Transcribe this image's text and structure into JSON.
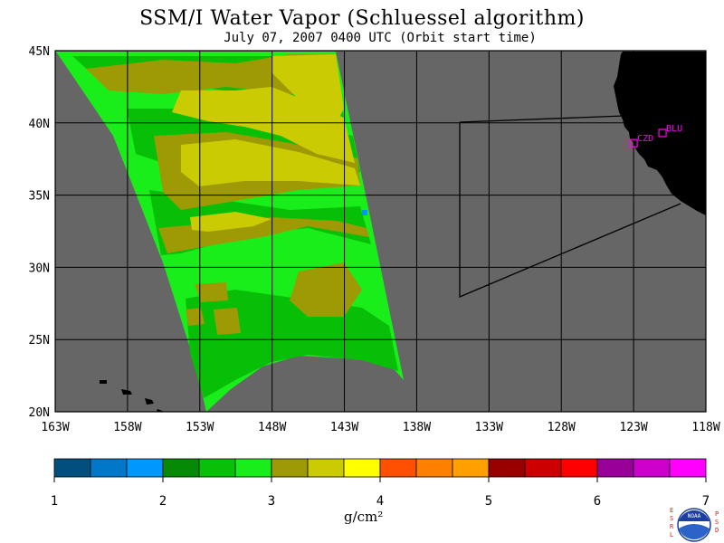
{
  "title": "SSM/I Water Vapor (Schluessel algorithm)",
  "subtitle": "July 07, 2007  0400 UTC  (Orbit start time)",
  "colors": {
    "ocean": "#666666",
    "land": "#000000",
    "swath_base": "#1aee1a",
    "swath_mid": "#06bf06",
    "swath_olive": "#9e9a06",
    "swath_yellow": "#cbcb04",
    "station": "#ff00ff"
  },
  "map": {
    "lon_range": [
      -163,
      -118
    ],
    "lat_range": [
      20,
      45
    ],
    "lon_labels": [
      "163W",
      "158W",
      "153W",
      "148W",
      "143W",
      "138W",
      "133W",
      "128W",
      "123W",
      "118W"
    ],
    "lat_labels": [
      "45N",
      "40N",
      "35N",
      "30N",
      "25N",
      "20N"
    ],
    "stations": [
      {
        "id": "CZD",
        "lon": -123.0,
        "lat": 38.6
      },
      {
        "id": "BLU",
        "lon": -121.0,
        "lat": 39.3
      }
    ]
  },
  "legend": {
    "ticks": [
      "1",
      "2",
      "3",
      "4",
      "5",
      "6",
      "7"
    ],
    "unit_label": "g/cm²",
    "colors": [
      "#004f7f",
      "#0077c8",
      "#0098ff",
      "#058a05",
      "#08c008",
      "#1aee1a",
      "#9e9a06",
      "#cbcb04",
      "#ffff00",
      "#ff5000",
      "#ff7f00",
      "#ffa000",
      "#990000",
      "#cc0000",
      "#ff0000",
      "#990099",
      "#cc00cc",
      "#ff00ff"
    ]
  },
  "logo": {
    "left_letters": [
      "E",
      "S",
      "R",
      "L"
    ],
    "center_text": "NOAA",
    "right_letters": [
      "P",
      "S",
      "D"
    ]
  }
}
